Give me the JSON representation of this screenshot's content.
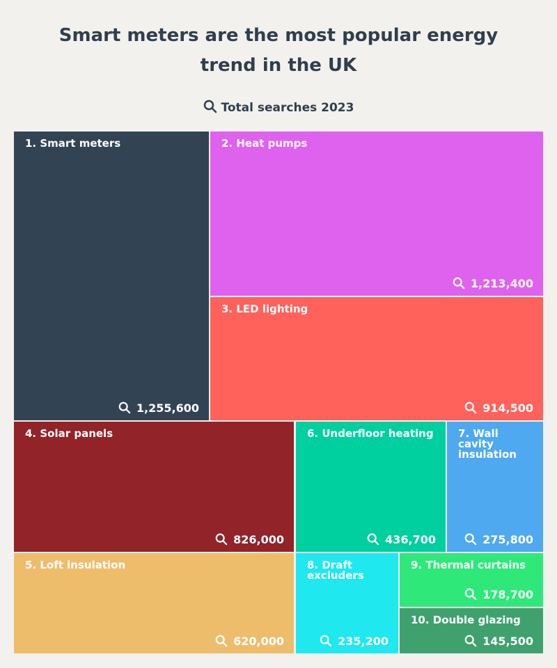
{
  "chart_data": {
    "type": "treemap",
    "title": "Smart meters are the most popular energy trend in the UK",
    "subtitle": "Total searches 2023",
    "categories": [
      "1. Smart meters",
      "2. Heat pumps",
      "3. LED lighting",
      "4. Solar panels",
      "5. Loft insulation",
      "6. Underfloor heating",
      "7. Wall cavity insulation",
      "8. Draft excluders",
      "9. Thermal curtains",
      "10. Double glazing"
    ],
    "values": [
      1255600,
      1213400,
      914500,
      826000,
      620000,
      436700,
      275800,
      235200,
      178700,
      145500
    ],
    "value_labels": [
      "1,255,600",
      "1,213,400",
      "914,500",
      "826,000",
      "620,000",
      "436,700",
      "275,800",
      "235,200",
      "178,700",
      "145,500"
    ],
    "colors": [
      "#324354",
      "#df62ef",
      "#ff615b",
      "#922328",
      "#eebd6c",
      "#00cf9f",
      "#4ea9f0",
      "#1fe8ef",
      "#2ee97a",
      "#3fa26e"
    ]
  }
}
